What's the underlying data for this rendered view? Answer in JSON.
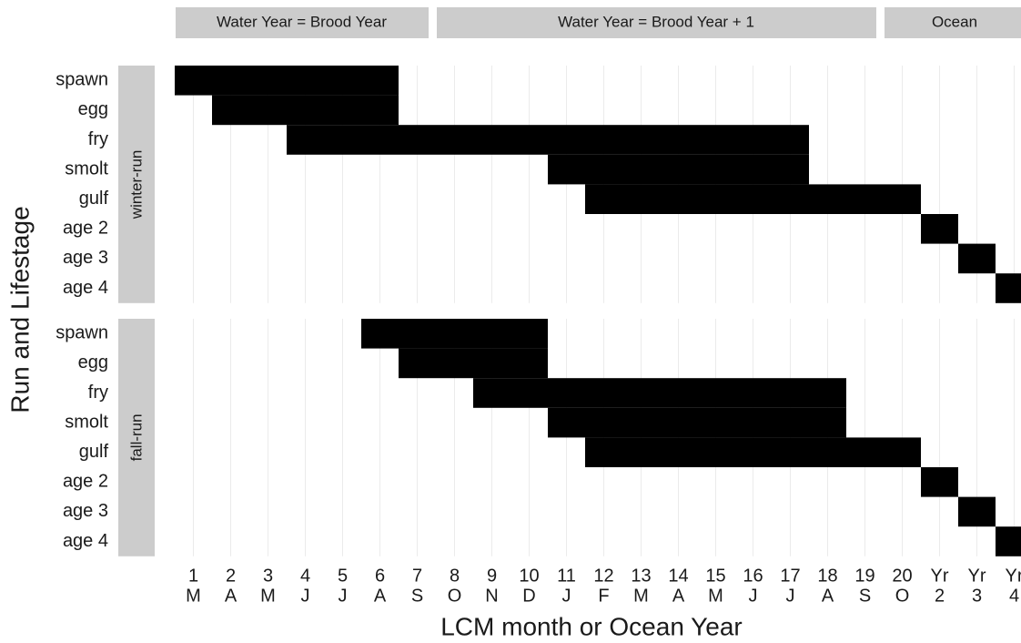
{
  "chart_data": {
    "type": "tile",
    "x_label": "LCM month or Ocean Year",
    "y_label": "Run and Lifestage",
    "color": "#000000",
    "grid": true,
    "column_groups": [
      {
        "label": "Water Year = Brood Year",
        "categories": [
          [
            "1",
            "M"
          ],
          [
            "2",
            "A"
          ],
          [
            "3",
            "M"
          ],
          [
            "4",
            "J"
          ],
          [
            "5",
            "J"
          ],
          [
            "6",
            "A"
          ],
          [
            "7",
            "S"
          ]
        ]
      },
      {
        "label": "Water Year = Brood Year + 1",
        "categories": [
          [
            "8",
            "O"
          ],
          [
            "9",
            "N"
          ],
          [
            "10",
            "D"
          ],
          [
            "11",
            "J"
          ],
          [
            "12",
            "F"
          ],
          [
            "13",
            "M"
          ],
          [
            "14",
            "A"
          ],
          [
            "15",
            "M"
          ],
          [
            "16",
            "J"
          ],
          [
            "17",
            "J"
          ],
          [
            "18",
            "A"
          ],
          [
            "19",
            "S"
          ]
        ]
      },
      {
        "label": "Ocean",
        "categories": [
          [
            "20",
            "O"
          ],
          [
            "Yr",
            "2"
          ],
          [
            "Yr",
            "3"
          ],
          [
            "Yr",
            "4"
          ]
        ]
      }
    ],
    "facets": [
      {
        "name": "winter-run",
        "series": [
          {
            "name": "spawn",
            "values": [
              1,
              1,
              1,
              1,
              1,
              1,
              0,
              0,
              0,
              0,
              0,
              0,
              0,
              0,
              0,
              0,
              0,
              0,
              0,
              0,
              0,
              0,
              0
            ]
          },
          {
            "name": "egg",
            "values": [
              0,
              1,
              1,
              1,
              1,
              1,
              0,
              0,
              0,
              0,
              0,
              0,
              0,
              0,
              0,
              0,
              0,
              0,
              0,
              0,
              0,
              0,
              0
            ]
          },
          {
            "name": "fry",
            "values": [
              0,
              0,
              0,
              1,
              1,
              1,
              1,
              1,
              1,
              1,
              1,
              1,
              1,
              1,
              1,
              1,
              1,
              0,
              0,
              0,
              0,
              0,
              0
            ]
          },
          {
            "name": "smolt",
            "values": [
              0,
              0,
              0,
              0,
              0,
              0,
              0,
              0,
              0,
              0,
              1,
              1,
              1,
              1,
              1,
              1,
              1,
              0,
              0,
              0,
              0,
              0,
              0
            ]
          },
          {
            "name": "gulf",
            "values": [
              0,
              0,
              0,
              0,
              0,
              0,
              0,
              0,
              0,
              0,
              0,
              1,
              1,
              1,
              1,
              1,
              1,
              1,
              1,
              1,
              0,
              0,
              0
            ]
          },
          {
            "name": "age 2",
            "values": [
              0,
              0,
              0,
              0,
              0,
              0,
              0,
              0,
              0,
              0,
              0,
              0,
              0,
              0,
              0,
              0,
              0,
              0,
              0,
              0,
              1,
              0,
              0
            ]
          },
          {
            "name": "age 3",
            "values": [
              0,
              0,
              0,
              0,
              0,
              0,
              0,
              0,
              0,
              0,
              0,
              0,
              0,
              0,
              0,
              0,
              0,
              0,
              0,
              0,
              0,
              1,
              0
            ]
          },
          {
            "name": "age 4",
            "values": [
              0,
              0,
              0,
              0,
              0,
              0,
              0,
              0,
              0,
              0,
              0,
              0,
              0,
              0,
              0,
              0,
              0,
              0,
              0,
              0,
              0,
              0,
              1
            ]
          }
        ]
      },
      {
        "name": "fall-run",
        "series": [
          {
            "name": "spawn",
            "values": [
              0,
              0,
              0,
              0,
              0,
              1,
              1,
              1,
              1,
              1,
              0,
              0,
              0,
              0,
              0,
              0,
              0,
              0,
              0,
              0,
              0,
              0,
              0
            ]
          },
          {
            "name": "egg",
            "values": [
              0,
              0,
              0,
              0,
              0,
              0,
              1,
              1,
              1,
              1,
              0,
              0,
              0,
              0,
              0,
              0,
              0,
              0,
              0,
              0,
              0,
              0,
              0
            ]
          },
          {
            "name": "fry",
            "values": [
              0,
              0,
              0,
              0,
              0,
              0,
              0,
              0,
              1,
              1,
              1,
              1,
              1,
              1,
              1,
              1,
              1,
              1,
              0,
              0,
              0,
              0,
              0
            ]
          },
          {
            "name": "smolt",
            "values": [
              0,
              0,
              0,
              0,
              0,
              0,
              0,
              0,
              0,
              0,
              1,
              1,
              1,
              1,
              1,
              1,
              1,
              1,
              0,
              0,
              0,
              0,
              0
            ]
          },
          {
            "name": "gulf",
            "values": [
              0,
              0,
              0,
              0,
              0,
              0,
              0,
              0,
              0,
              0,
              0,
              1,
              1,
              1,
              1,
              1,
              1,
              1,
              1,
              1,
              0,
              0,
              0
            ]
          },
          {
            "name": "age 2",
            "values": [
              0,
              0,
              0,
              0,
              0,
              0,
              0,
              0,
              0,
              0,
              0,
              0,
              0,
              0,
              0,
              0,
              0,
              0,
              0,
              0,
              1,
              0,
              0
            ]
          },
          {
            "name": "age 3",
            "values": [
              0,
              0,
              0,
              0,
              0,
              0,
              0,
              0,
              0,
              0,
              0,
              0,
              0,
              0,
              0,
              0,
              0,
              0,
              0,
              0,
              0,
              1,
              0
            ]
          },
          {
            "name": "age 4",
            "values": [
              0,
              0,
              0,
              0,
              0,
              0,
              0,
              0,
              0,
              0,
              0,
              0,
              0,
              0,
              0,
              0,
              0,
              0,
              0,
              0,
              0,
              0,
              1
            ]
          }
        ]
      }
    ]
  }
}
